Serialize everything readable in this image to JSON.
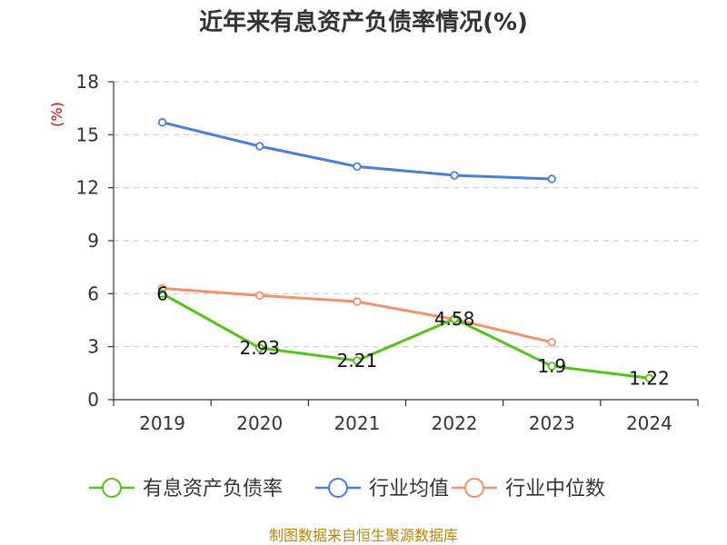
{
  "chart_data": {
    "type": "line",
    "title": "近年来有息资产负债率情况(%)",
    "ylabel": "(%)",
    "xlabel": "",
    "categories": [
      "2019",
      "2020",
      "2021",
      "2022",
      "2023",
      "2024"
    ],
    "ylim": [
      0,
      18
    ],
    "yticks": [
      0,
      3,
      6,
      9,
      12,
      15,
      18
    ],
    "grid": true,
    "legend_position": "bottom",
    "series": [
      {
        "name": "有息资产负债率",
        "color": "#52c41a",
        "values": [
          6,
          2.93,
          2.21,
          4.58,
          1.9,
          1.22
        ],
        "labels": [
          "6",
          "2.93",
          "2.21",
          "4.58",
          "1.9",
          "1.22"
        ]
      },
      {
        "name": "行业均值",
        "color": "#4a7fd8",
        "values": [
          15.7,
          14.35,
          13.2,
          12.7,
          12.5,
          null
        ],
        "labels": null
      },
      {
        "name": "行业中位数",
        "color": "#f4906a",
        "values": [
          6.3,
          5.9,
          5.55,
          4.55,
          3.25,
          null
        ],
        "labels": null
      }
    ],
    "source": "制图数据来自恒生聚源数据库"
  }
}
